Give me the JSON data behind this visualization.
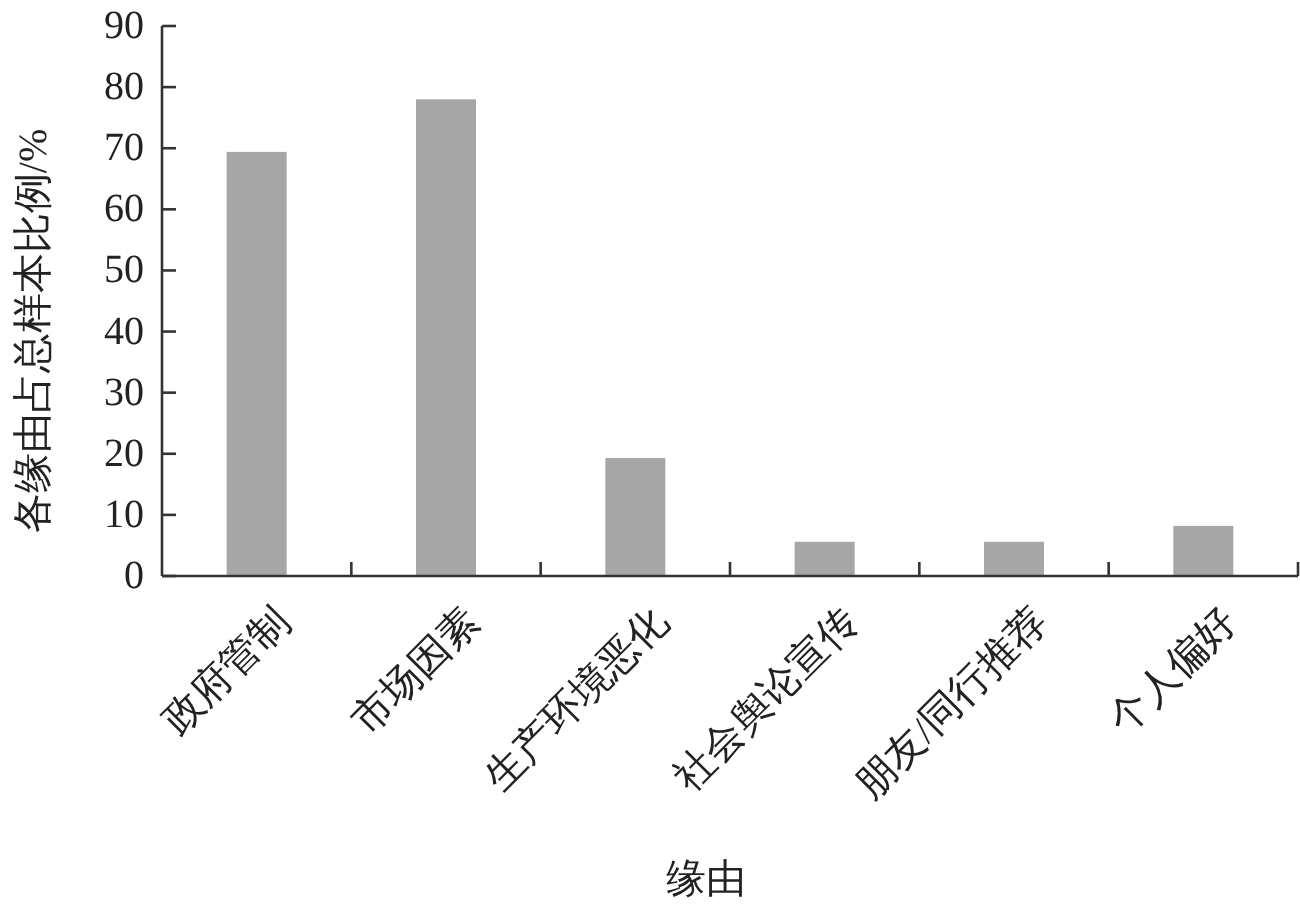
{
  "chart_data": {
    "type": "bar",
    "xlabel": "缘由",
    "ylabel": "各缘由占总样本比例/%",
    "categories": [
      "政府管制",
      "市场因素",
      "生产环境恶化",
      "社会舆论宣传",
      "朋友/同行推荐",
      "个人偏好"
    ],
    "values": [
      69.4,
      78.0,
      19.3,
      5.6,
      5.6,
      8.2
    ],
    "color": "#a6a6a6",
    "ylim": [
      0,
      90
    ],
    "yticks": [
      0,
      10,
      20,
      30,
      40,
      50,
      60,
      70,
      80,
      90
    ],
    "grid": false
  }
}
